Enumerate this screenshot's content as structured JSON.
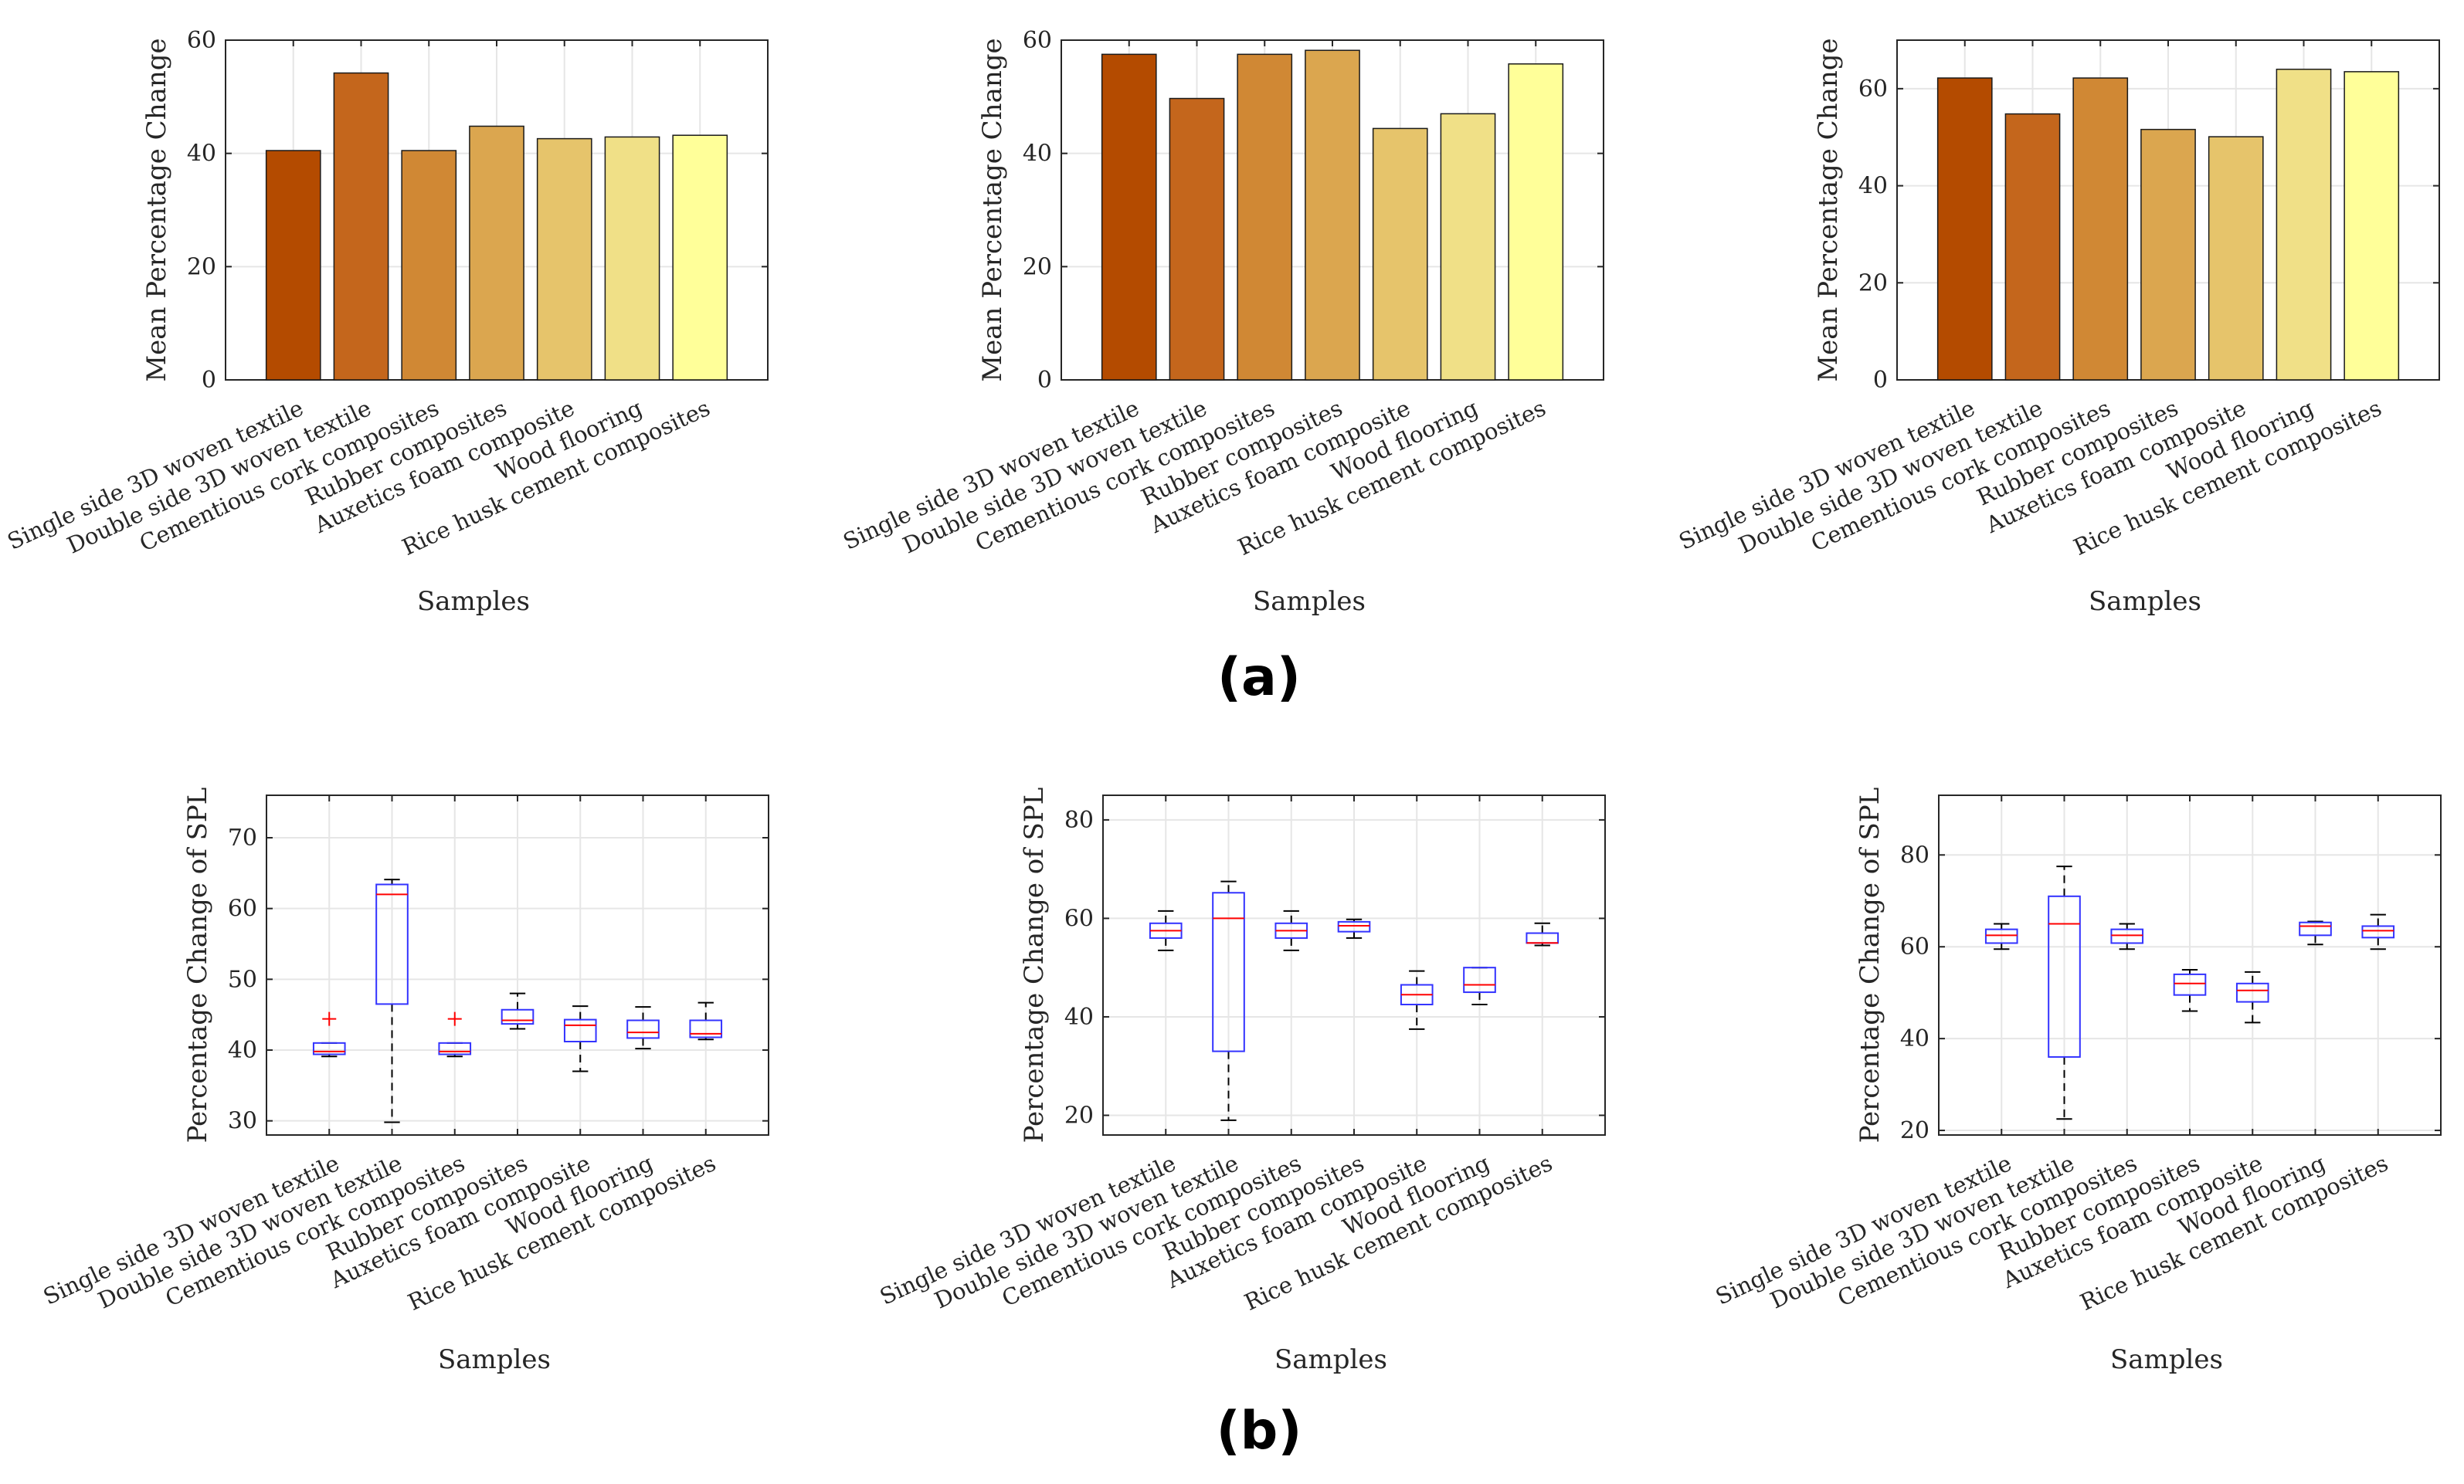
{
  "figure": {
    "label_a": "(a)",
    "label_b": "(b)"
  },
  "chart_data": [
    {
      "type": "bar",
      "panel": "a1",
      "categories": [
        "Single side 3D woven textile",
        "Double side 3D woven textile",
        "Cementious cork composites",
        "Rubber composites",
        "Auxetics foam composite",
        "Wood flooring",
        "Rice husk cement composites"
      ],
      "values": [
        40.5,
        54.2,
        40.5,
        44.8,
        42.6,
        42.9,
        43.2
      ],
      "colors": [
        "#b44b00",
        "#c4661c",
        "#d08834",
        "#dba64f",
        "#e6c46b",
        "#f0e087",
        "#ffff99"
      ],
      "xlabel": "Samples",
      "ylabel": "Mean Percentage Change",
      "ylim": [
        0,
        60
      ],
      "yticks": [
        0,
        20,
        40,
        60
      ],
      "grid": true
    },
    {
      "type": "bar",
      "panel": "a2",
      "categories": [
        "Single side 3D woven textile",
        "Double side 3D woven textile",
        "Cementious cork composites",
        "Rubber composites",
        "Auxetics foam composite",
        "Wood flooring",
        "Rice husk cement composites"
      ],
      "values": [
        57.5,
        49.7,
        57.5,
        58.2,
        44.4,
        47.0,
        55.8
      ],
      "colors": [
        "#b44b00",
        "#c4661c",
        "#d08834",
        "#dba64f",
        "#e6c46b",
        "#f0e087",
        "#ffff99"
      ],
      "xlabel": "Samples",
      "ylabel": "Mean Percentage Change",
      "ylim": [
        0,
        60
      ],
      "yticks": [
        0,
        20,
        40,
        60
      ],
      "grid": true
    },
    {
      "type": "bar",
      "panel": "a3",
      "categories": [
        "Single side 3D woven textile",
        "Double side 3D woven textile",
        "Cementious cork composites",
        "Rubber composites",
        "Auxetics foam composite",
        "Wood flooring",
        "Rice husk cement composites"
      ],
      "values": [
        62.2,
        54.8,
        62.2,
        51.6,
        50.1,
        64.0,
        63.5
      ],
      "colors": [
        "#b44b00",
        "#c4661c",
        "#d08834",
        "#dba64f",
        "#e6c46b",
        "#f0e087",
        "#ffff99"
      ],
      "xlabel": "Samples",
      "ylabel": "Mean Percentage Change",
      "ylim": [
        0,
        70
      ],
      "yticks": [
        0,
        20,
        40,
        60
      ],
      "grid": true
    },
    {
      "type": "box",
      "panel": "b1",
      "categories": [
        "Single side 3D woven textile",
        "Double side 3D woven textile",
        "Cementious cork composites",
        "Rubber composites",
        "Auxetics foam composite",
        "Wood flooring",
        "Rice husk cement composites"
      ],
      "boxes": [
        {
          "whisker_low": 39.1,
          "q1": 39.4,
          "median": 39.8,
          "q3": 41.0,
          "whisker_high": 41.0,
          "outliers": [
            44.4
          ]
        },
        {
          "whisker_low": 29.8,
          "q1": 46.5,
          "median": 62.0,
          "q3": 63.4,
          "whisker_high": 64.1,
          "outliers": []
        },
        {
          "whisker_low": 39.1,
          "q1": 39.4,
          "median": 39.8,
          "q3": 41.0,
          "whisker_high": 41.0,
          "outliers": [
            44.4
          ]
        },
        {
          "whisker_low": 43.0,
          "q1": 43.7,
          "median": 44.2,
          "q3": 45.7,
          "whisker_high": 48.0,
          "outliers": []
        },
        {
          "whisker_low": 37.0,
          "q1": 41.2,
          "median": 43.5,
          "q3": 44.3,
          "whisker_high": 46.2,
          "outliers": []
        },
        {
          "whisker_low": 40.2,
          "q1": 41.7,
          "median": 42.5,
          "q3": 44.2,
          "whisker_high": 46.1,
          "outliers": []
        },
        {
          "whisker_low": 41.5,
          "q1": 41.8,
          "median": 42.3,
          "q3": 44.2,
          "whisker_high": 46.7,
          "outliers": []
        }
      ],
      "xlabel": "Samples",
      "ylabel": "Percentage Change of SPL",
      "ylim": [
        28,
        76
      ],
      "yticks": [
        30,
        40,
        50,
        60,
        70
      ],
      "grid": true
    },
    {
      "type": "box",
      "panel": "b2",
      "categories": [
        "Single side 3D woven textile",
        "Double side 3D woven textile",
        "Cementious cork composites",
        "Rubber composites",
        "Auxetics foam composite",
        "Wood flooring",
        "Rice husk cement composites"
      ],
      "boxes": [
        {
          "whisker_low": 53.5,
          "q1": 56.0,
          "median": 57.5,
          "q3": 59.0,
          "whisker_high": 61.5,
          "outliers": []
        },
        {
          "whisker_low": 19.0,
          "q1": 33.0,
          "median": 60.0,
          "q3": 65.2,
          "whisker_high": 67.5,
          "outliers": []
        },
        {
          "whisker_low": 53.5,
          "q1": 56.0,
          "median": 57.5,
          "q3": 59.0,
          "whisker_high": 61.5,
          "outliers": []
        },
        {
          "whisker_low": 56.0,
          "q1": 57.3,
          "median": 58.5,
          "q3": 59.3,
          "whisker_high": 59.8,
          "outliers": []
        },
        {
          "whisker_low": 37.5,
          "q1": 42.5,
          "median": 44.5,
          "q3": 46.5,
          "whisker_high": 49.3,
          "outliers": []
        },
        {
          "whisker_low": 42.5,
          "q1": 45.0,
          "median": 46.5,
          "q3": 50.0,
          "whisker_high": 50.0,
          "outliers": []
        },
        {
          "whisker_low": 54.5,
          "q1": 55.0,
          "median": 55.0,
          "q3": 57.0,
          "whisker_high": 59.0,
          "outliers": []
        }
      ],
      "xlabel": "Samples",
      "ylabel": "Percentage Change of SPL",
      "ylim": [
        16,
        85
      ],
      "yticks": [
        20,
        40,
        60,
        80
      ],
      "grid": true
    },
    {
      "type": "box",
      "panel": "b3",
      "categories": [
        "Single side 3D woven textile",
        "Double side 3D woven textile",
        "Cementious cork composites",
        "Rubber composites",
        "Auxetics foam composite",
        "Wood flooring",
        "Rice husk cement composites"
      ],
      "boxes": [
        {
          "whisker_low": 59.5,
          "q1": 60.8,
          "median": 62.5,
          "q3": 63.8,
          "whisker_high": 65.0,
          "outliers": []
        },
        {
          "whisker_low": 22.5,
          "q1": 36.0,
          "median": 65.0,
          "q3": 71.0,
          "whisker_high": 77.5,
          "outliers": []
        },
        {
          "whisker_low": 59.5,
          "q1": 60.8,
          "median": 62.5,
          "q3": 63.8,
          "whisker_high": 65.0,
          "outliers": []
        },
        {
          "whisker_low": 46.0,
          "q1": 49.5,
          "median": 52.0,
          "q3": 54.0,
          "whisker_high": 55.0,
          "outliers": []
        },
        {
          "whisker_low": 43.5,
          "q1": 48.0,
          "median": 50.5,
          "q3": 52.0,
          "whisker_high": 54.5,
          "outliers": []
        },
        {
          "whisker_low": 60.5,
          "q1": 62.5,
          "median": 64.5,
          "q3": 65.3,
          "whisker_high": 65.5,
          "outliers": []
        },
        {
          "whisker_low": 59.5,
          "q1": 62.0,
          "median": 63.5,
          "q3": 64.5,
          "whisker_high": 67.0,
          "outliers": []
        }
      ],
      "xlabel": "Samples",
      "ylabel": "Percentage Change of SPL",
      "ylim": [
        19,
        93
      ],
      "yticks": [
        20,
        40,
        60,
        80
      ],
      "grid": true
    }
  ]
}
